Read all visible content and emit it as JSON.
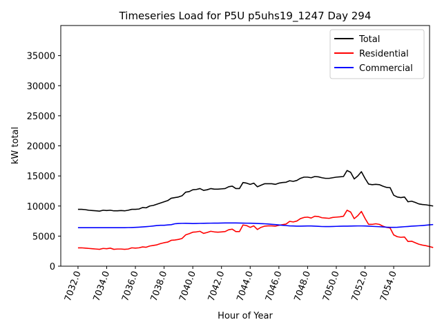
{
  "chart_data": {
    "type": "line",
    "title": "Timeseries Load for P5U p5uhs19_1247  Day 294",
    "xlabel": "Hour of Year",
    "ylabel": "kW total",
    "xlim": [
      7030.8,
      7056.5
    ],
    "ylim": [
      0,
      40000
    ],
    "x_ticks": [
      7032,
      7034,
      7036,
      7038,
      7040,
      7042,
      7044,
      7046,
      7048,
      7050,
      7052,
      7054
    ],
    "x_tick_labels": [
      "7032.0",
      "7034.0",
      "7036.0",
      "7038.0",
      "7040.0",
      "7042.0",
      "7044.0",
      "7046.0",
      "7048.0",
      "7050.0",
      "7052.0",
      "7054.0"
    ],
    "y_ticks": [
      0,
      5000,
      10000,
      15000,
      20000,
      25000,
      30000,
      35000
    ],
    "y_tick_labels": [
      "0",
      "5000",
      "10000",
      "15000",
      "20000",
      "25000",
      "30000",
      "35000"
    ],
    "legend_position": "top-right",
    "x_start": 7032.0,
    "x_step": 0.25,
    "series": [
      {
        "name": "Total",
        "color": "#000000",
        "values": [
          9450,
          9450,
          9400,
          9300,
          9250,
          9200,
          9150,
          9300,
          9250,
          9300,
          9200,
          9200,
          9250,
          9200,
          9300,
          9450,
          9450,
          9500,
          9750,
          9700,
          10000,
          10100,
          10300,
          10500,
          10700,
          10900,
          11300,
          11400,
          11500,
          11700,
          12300,
          12400,
          12700,
          12750,
          12900,
          12600,
          12700,
          12900,
          12800,
          12800,
          12850,
          12900,
          13200,
          13300,
          12900,
          12900,
          13900,
          13800,
          13600,
          13800,
          13200,
          13450,
          13700,
          13700,
          13700,
          13600,
          13800,
          13900,
          13950,
          14200,
          14100,
          14250,
          14600,
          14800,
          14800,
          14700,
          14900,
          14850,
          14700,
          14600,
          14600,
          14700,
          14800,
          14850,
          14900,
          15900,
          15600,
          14500,
          15000,
          15700,
          14600,
          13650,
          13550,
          13600,
          13550,
          13300,
          13100,
          13050,
          11800,
          11500,
          11400,
          11500,
          10700,
          10800,
          10600,
          10350,
          10250,
          10200,
          10100,
          10000
        ]
      },
      {
        "name": "Residential",
        "color": "#ff0000",
        "values": [
          3050,
          3050,
          3000,
          2950,
          2900,
          2850,
          2800,
          2950,
          2900,
          3000,
          2800,
          2850,
          2850,
          2800,
          2850,
          3050,
          3000,
          3050,
          3200,
          3150,
          3350,
          3450,
          3550,
          3750,
          3900,
          4000,
          4300,
          4350,
          4450,
          4600,
          5200,
          5400,
          5650,
          5700,
          5800,
          5450,
          5600,
          5800,
          5700,
          5650,
          5700,
          5750,
          6050,
          6150,
          5750,
          5750,
          6850,
          6750,
          6450,
          6700,
          6100,
          6450,
          6650,
          6700,
          6700,
          6650,
          6800,
          6900,
          7000,
          7450,
          7350,
          7500,
          7900,
          8100,
          8150,
          8000,
          8300,
          8250,
          8050,
          8000,
          7950,
          8100,
          8150,
          8200,
          8300,
          9300,
          9000,
          7900,
          8400,
          9100,
          7950,
          6950,
          6950,
          7050,
          6950,
          6650,
          6450,
          6350,
          5200,
          4900,
          4800,
          4850,
          4100,
          4150,
          3900,
          3650,
          3500,
          3400,
          3250,
          3100
        ]
      },
      {
        "name": "Commercial",
        "color": "#0000ff",
        "values": [
          6400,
          6400,
          6400,
          6400,
          6400,
          6400,
          6400,
          6400,
          6400,
          6400,
          6400,
          6400,
          6400,
          6400,
          6420,
          6430,
          6450,
          6480,
          6520,
          6570,
          6620,
          6680,
          6760,
          6800,
          6800,
          6850,
          6900,
          7050,
          7100,
          7120,
          7130,
          7110,
          7090,
          7100,
          7120,
          7130,
          7140,
          7150,
          7160,
          7160,
          7170,
          7180,
          7180,
          7180,
          7180,
          7170,
          7160,
          7150,
          7140,
          7130,
          7100,
          7070,
          7050,
          7010,
          6960,
          6910,
          6860,
          6800,
          6750,
          6700,
          6680,
          6660,
          6660,
          6670,
          6680,
          6680,
          6660,
          6630,
          6590,
          6580,
          6580,
          6600,
          6620,
          6640,
          6650,
          6660,
          6670,
          6680,
          6690,
          6690,
          6680,
          6650,
          6620,
          6590,
          6560,
          6520,
          6480,
          6460,
          6450,
          6470,
          6510,
          6560,
          6600,
          6650,
          6680,
          6720,
          6760,
          6810,
          6870,
          6920
        ]
      }
    ]
  }
}
